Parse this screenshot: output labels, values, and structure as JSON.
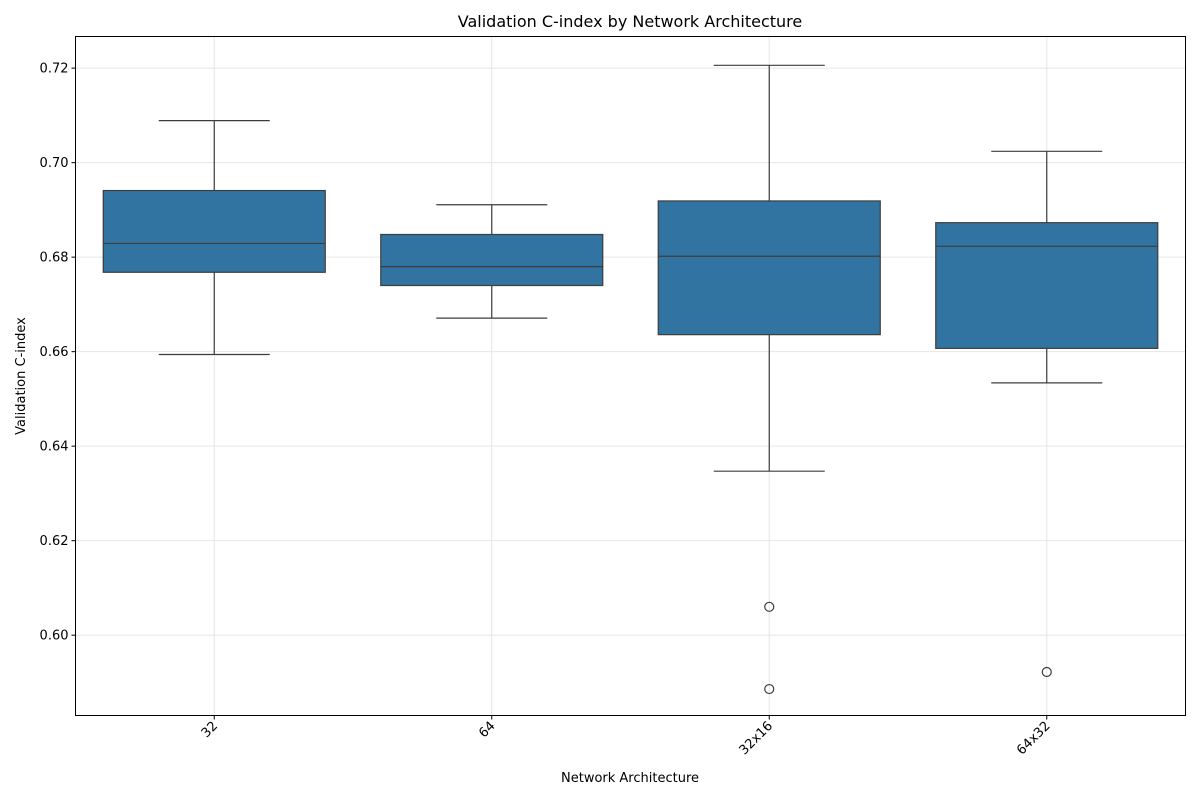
{
  "chart_data": {
    "type": "box",
    "title": "Validation C-index by Network Architecture",
    "xlabel": "Network Architecture",
    "ylabel": "Validation C-index",
    "ylim": [
      0.583,
      0.7267
    ],
    "yticks": [
      0.6,
      0.62,
      0.64,
      0.66,
      0.68,
      0.7,
      0.72
    ],
    "ytick_labels": [
      "0.60",
      "0.62",
      "0.64",
      "0.66",
      "0.68",
      "0.70",
      "0.72"
    ],
    "grid": true,
    "box_color": "#3274a1",
    "categories": [
      "32",
      "64",
      "32x16",
      "64x32"
    ],
    "boxes": [
      {
        "category": "32",
        "whisker_low": 0.6594,
        "q1": 0.6768,
        "median": 0.6829,
        "q3": 0.6941,
        "whisker_high": 0.7089,
        "outliers": []
      },
      {
        "category": "64",
        "whisker_low": 0.6671,
        "q1": 0.674,
        "median": 0.678,
        "q3": 0.6848,
        "whisker_high": 0.6911,
        "outliers": []
      },
      {
        "category": "32x16",
        "whisker_low": 0.6347,
        "q1": 0.6636,
        "median": 0.6802,
        "q3": 0.6919,
        "whisker_high": 0.7206,
        "outliers": [
          0.606,
          0.5886
        ]
      },
      {
        "category": "64x32",
        "whisker_low": 0.6534,
        "q1": 0.6607,
        "median": 0.6823,
        "q3": 0.6873,
        "whisker_high": 0.7024,
        "outliers": [
          0.5922
        ]
      }
    ]
  }
}
